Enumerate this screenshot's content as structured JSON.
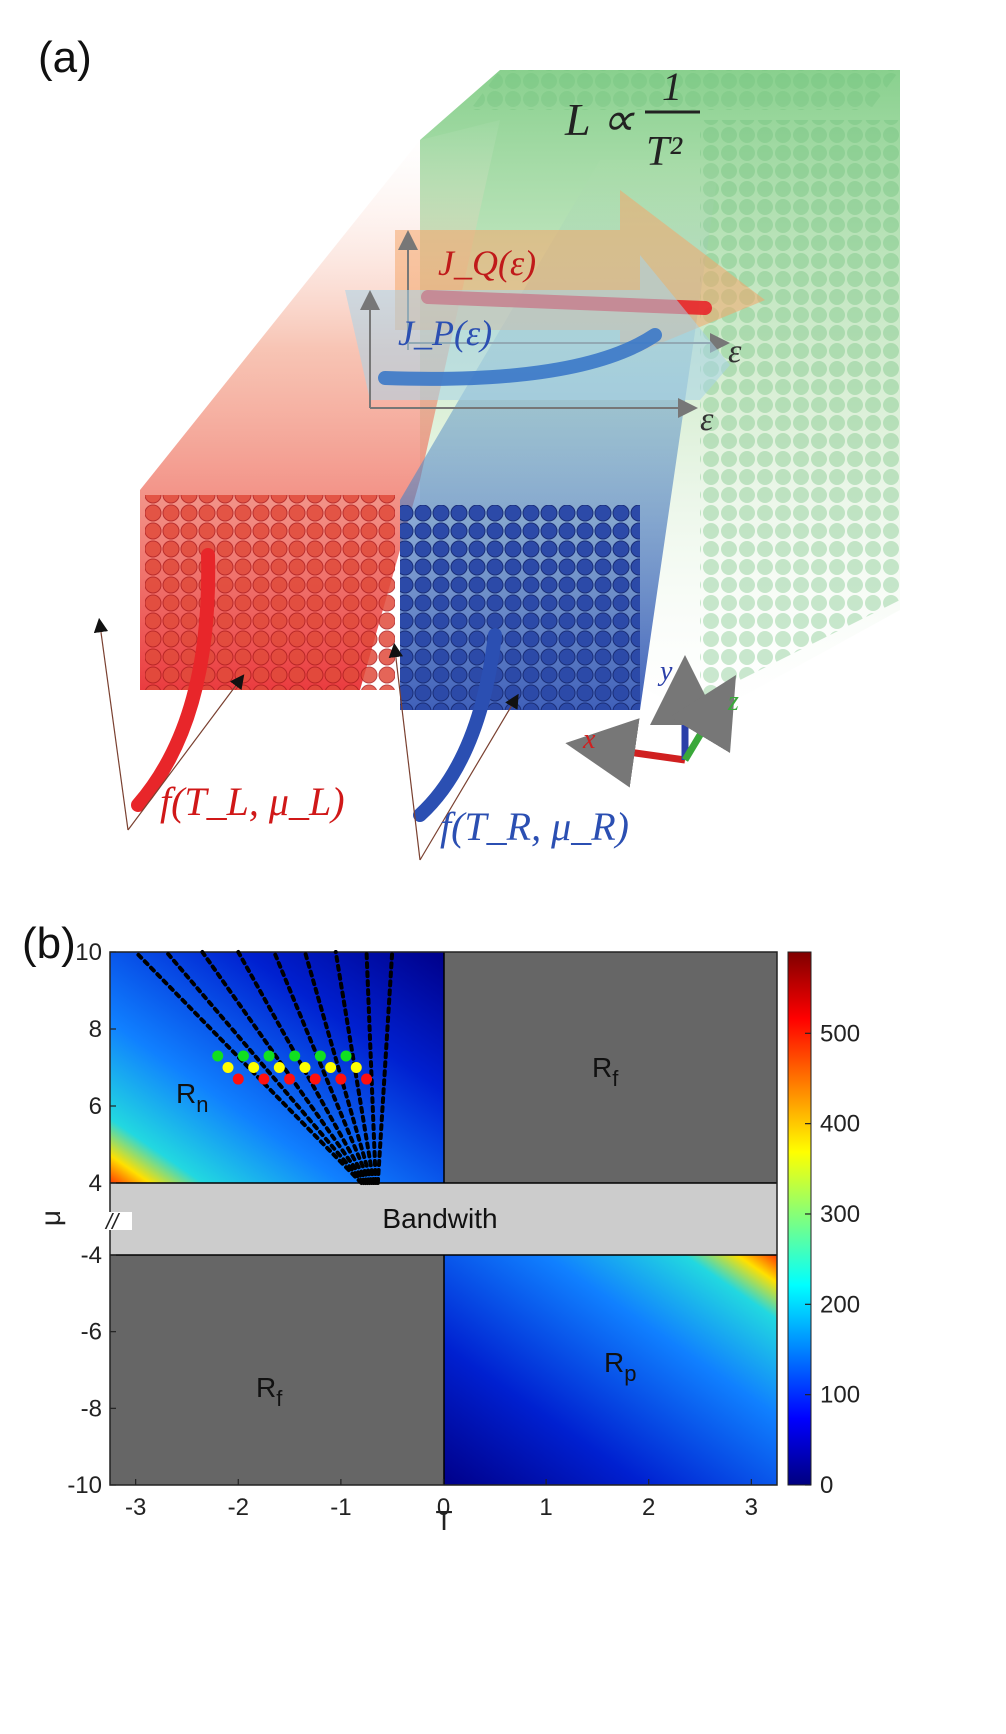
{
  "panel_a": {
    "label": "(a)",
    "formula_left": "L ∝",
    "formula_num": "1",
    "formula_den": "T²",
    "jq_label": "J_Q(ε)",
    "jp_label": "J_P(ε)",
    "eps_label": "ε",
    "left_reservoir_label": "f(T_L, μ_L)",
    "right_reservoir_label": "f(T_R, μ_R)",
    "axes_labels": {
      "x": "x",
      "y": "y",
      "z": "z"
    },
    "colors": {
      "hot": "#e8262a",
      "cold": "#2b4fb2",
      "channel": "#74c87a",
      "heat_arrow": "#f4a56a",
      "particle_arrow": "#a9d4e8"
    }
  },
  "panel_b": {
    "label": "(b)",
    "regions": {
      "rn": "R",
      "rn_sub": "n",
      "rf": "R",
      "rf_sub": "f",
      "rp": "R",
      "rp_sub": "p"
    },
    "bandwidth_label": "Bandwith",
    "break_mark": "//",
    "colors": {
      "region_f": "#666666",
      "bandwidth": "#cccccc"
    }
  },
  "chart_data": {
    "type": "heatmap",
    "title": "",
    "xlabel": "T",
    "ylabel": "μ",
    "xlim": [
      -3.25,
      3.25
    ],
    "ylim": [
      -10,
      10
    ],
    "xticks": [
      "-3",
      "-2",
      "-1",
      "0",
      "1",
      "2",
      "3"
    ],
    "yticks": [
      "10",
      "8",
      "6",
      "4",
      "-4",
      "-6",
      "-8",
      "-10"
    ],
    "colorbar": {
      "min": 0,
      "max": 590,
      "ticks": [
        "500",
        "400",
        "300",
        "200",
        "100",
        "0"
      ],
      "colormap": "jet"
    },
    "gap_mu": [
      -4,
      4
    ],
    "dotted_lines": {
      "count": 9,
      "start": [
        -0.8,
        4
      ],
      "end_T": [
        -3.0,
        -2.7,
        -2.35,
        -2.0,
        -1.65,
        -1.35,
        -1.05,
        -0.75,
        -0.5
      ],
      "end_mu": 10
    },
    "markers": {
      "green": {
        "mu": 7.3,
        "T": [
          -2.2,
          -1.95,
          -1.7,
          -1.45,
          -1.2,
          -0.95
        ]
      },
      "yellow": {
        "mu": 7.0,
        "T": [
          -2.1,
          -1.85,
          -1.6,
          -1.35,
          -1.1,
          -0.85
        ]
      },
      "red": {
        "mu": 6.7,
        "T": [
          -2.0,
          -1.75,
          -1.5,
          -1.25,
          -1.0,
          -0.75
        ]
      }
    }
  }
}
